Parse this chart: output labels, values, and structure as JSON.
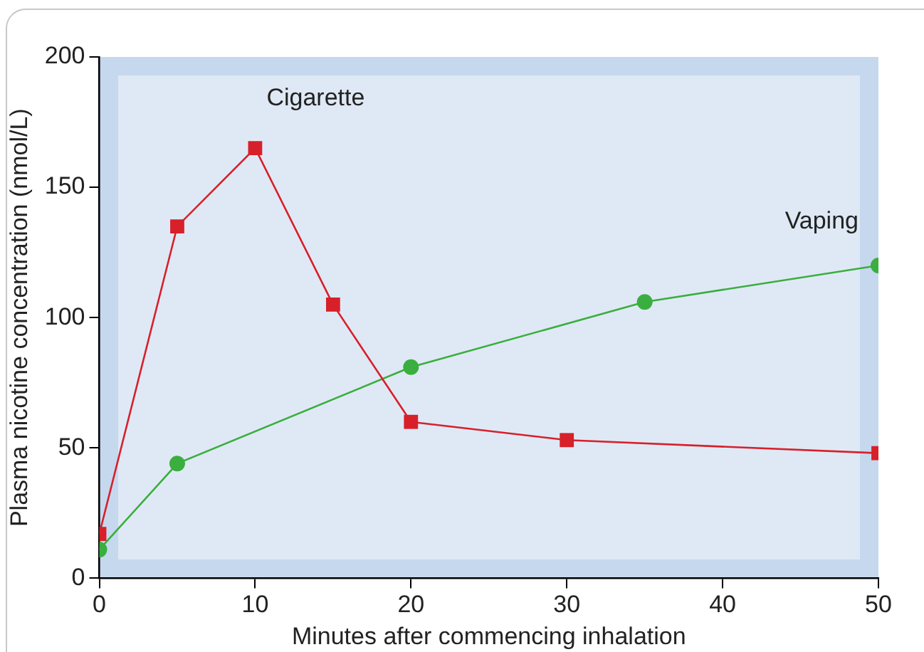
{
  "chart_data": {
    "type": "line",
    "xlabel": "Minutes after commencing inhalation",
    "ylabel": "Plasma nicotine concentration (nmol/L)",
    "xlim": [
      0,
      50
    ],
    "xticks": [
      0,
      10,
      20,
      30,
      40,
      50
    ],
    "ylim": [
      0,
      200
    ],
    "yticks": [
      0,
      50,
      100,
      150,
      200
    ],
    "grid": false,
    "legend": false,
    "series": [
      {
        "name": "Cigarette",
        "color": "#d7202a",
        "marker": "square",
        "x": [
          0,
          5,
          10,
          15,
          20,
          30,
          50
        ],
        "values": [
          17,
          135,
          165,
          105,
          60,
          53,
          48
        ]
      },
      {
        "name": "Vaping",
        "color": "#3aae3e",
        "marker": "circle",
        "x": [
          0,
          5,
          20,
          35,
          50
        ],
        "values": [
          11,
          44,
          81,
          106,
          120
        ]
      }
    ]
  }
}
